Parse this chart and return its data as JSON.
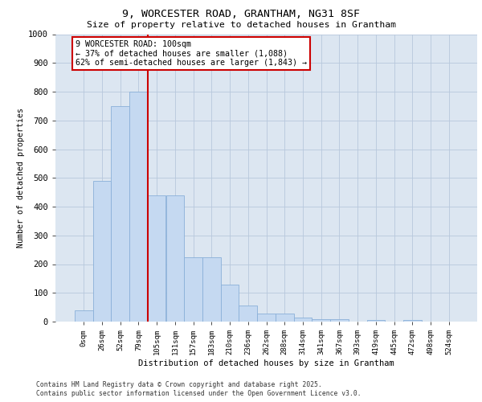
{
  "title_line1": "9, WORCESTER ROAD, GRANTHAM, NG31 8SF",
  "title_line2": "Size of property relative to detached houses in Grantham",
  "xlabel": "Distribution of detached houses by size in Grantham",
  "ylabel": "Number of detached properties",
  "bar_labels": [
    "0sqm",
    "26sqm",
    "52sqm",
    "79sqm",
    "105sqm",
    "131sqm",
    "157sqm",
    "183sqm",
    "210sqm",
    "236sqm",
    "262sqm",
    "288sqm",
    "314sqm",
    "341sqm",
    "367sqm",
    "393sqm",
    "419sqm",
    "445sqm",
    "472sqm",
    "498sqm",
    "524sqm"
  ],
  "bar_values": [
    40,
    490,
    750,
    800,
    440,
    440,
    225,
    225,
    130,
    55,
    27,
    27,
    14,
    7,
    7,
    0,
    5,
    0,
    5,
    0,
    0
  ],
  "bar_color": "#c5d9f1",
  "bar_edge_color": "#8ab0d8",
  "vline_pos": 3.5,
  "vline_color": "#cc0000",
  "annotation_text": "9 WORCESTER ROAD: 100sqm\n← 37% of detached houses are smaller (1,088)\n62% of semi-detached houses are larger (1,843) →",
  "annotation_box_color": "#ffffff",
  "annotation_box_edge": "#cc0000",
  "ylim_max": 1000,
  "yticks": [
    0,
    100,
    200,
    300,
    400,
    500,
    600,
    700,
    800,
    900,
    1000
  ],
  "grid_color": "#b8c8dc",
  "bg_color": "#dce6f1",
  "footer_line1": "Contains HM Land Registry data © Crown copyright and database right 2025.",
  "footer_line2": "Contains public sector information licensed under the Open Government Licence v3.0."
}
